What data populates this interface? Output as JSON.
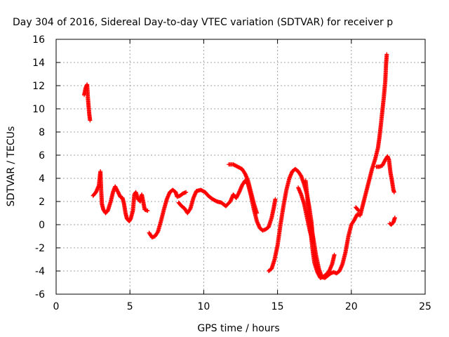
{
  "chart_data": {
    "type": "scatter",
    "title": "Day 304 of 2016, Sidereal Day-to-day VTEC variation (SDTVAR) for receiver p",
    "xlabel": "GPS time / hours",
    "ylabel": "SDTVAR / TECUs",
    "xlim": [
      0,
      25
    ],
    "ylim": [
      -6,
      16
    ],
    "xticks": [
      0,
      5,
      10,
      15,
      20,
      25
    ],
    "yticks": [
      -6,
      -4,
      -2,
      0,
      2,
      4,
      6,
      8,
      10,
      12,
      14,
      16
    ],
    "grid": true,
    "marker": "+",
    "color": "#ff0000",
    "segments": [
      [
        [
          1.9,
          11.2
        ],
        [
          2.0,
          11.8
        ],
        [
          2.1,
          12.1
        ],
        [
          2.15,
          11.0
        ],
        [
          2.2,
          10.2
        ],
        [
          2.25,
          9.5
        ],
        [
          2.3,
          9.0
        ]
      ],
      [
        [
          2.5,
          2.5
        ],
        [
          2.7,
          2.8
        ],
        [
          2.9,
          3.4
        ],
        [
          3.0,
          4.6
        ],
        [
          3.05,
          3.0
        ],
        [
          3.1,
          1.8
        ],
        [
          3.2,
          1.3
        ],
        [
          3.35,
          1.0
        ],
        [
          3.5,
          1.2
        ],
        [
          3.7,
          2.0
        ],
        [
          3.85,
          2.8
        ],
        [
          4.0,
          3.3
        ],
        [
          4.2,
          2.8
        ],
        [
          4.35,
          2.4
        ],
        [
          4.5,
          2.3
        ],
        [
          4.6,
          1.8
        ],
        [
          4.7,
          1.0
        ],
        [
          4.8,
          0.5
        ],
        [
          4.95,
          0.3
        ],
        [
          5.05,
          0.5
        ],
        [
          5.2,
          1.2
        ],
        [
          5.3,
          2.6
        ],
        [
          5.4,
          2.8
        ],
        [
          5.55,
          2.2
        ],
        [
          5.7,
          2.0
        ],
        [
          5.8,
          2.6
        ],
        [
          5.9,
          2.0
        ],
        [
          6.0,
          1.3
        ],
        [
          6.2,
          1.2
        ]
      ],
      [
        [
          6.3,
          -0.7
        ],
        [
          6.5,
          -1.1
        ],
        [
          6.7,
          -1.0
        ],
        [
          6.9,
          -0.6
        ],
        [
          7.1,
          0.3
        ],
        [
          7.3,
          1.3
        ],
        [
          7.5,
          2.2
        ],
        [
          7.7,
          2.8
        ],
        [
          7.9,
          3.0
        ],
        [
          8.1,
          2.8
        ],
        [
          8.2,
          2.4
        ],
        [
          8.4,
          2.5
        ],
        [
          8.6,
          2.7
        ],
        [
          8.8,
          2.8
        ]
      ],
      [
        [
          8.3,
          1.9
        ],
        [
          8.5,
          1.6
        ],
        [
          8.7,
          1.4
        ],
        [
          8.9,
          1.0
        ],
        [
          9.1,
          1.4
        ],
        [
          9.3,
          2.3
        ],
        [
          9.5,
          2.9
        ],
        [
          9.8,
          3.0
        ],
        [
          10.1,
          2.8
        ],
        [
          10.3,
          2.5
        ],
        [
          10.6,
          2.2
        ],
        [
          10.9,
          2.0
        ],
        [
          11.2,
          1.9
        ],
        [
          11.5,
          1.6
        ],
        [
          11.8,
          2.0
        ],
        [
          12.0,
          2.6
        ],
        [
          12.2,
          2.3
        ],
        [
          12.4,
          2.8
        ],
        [
          12.6,
          3.4
        ],
        [
          12.8,
          3.8
        ],
        [
          13.0,
          3.5
        ],
        [
          13.2,
          2.5
        ],
        [
          13.4,
          1.3
        ],
        [
          13.6,
          0.3
        ],
        [
          13.8,
          -0.3
        ],
        [
          14.0,
          -0.5
        ],
        [
          14.2,
          -0.4
        ],
        [
          14.4,
          -0.2
        ],
        [
          14.6,
          0.6
        ],
        [
          14.75,
          1.5
        ],
        [
          14.85,
          2.2
        ]
      ],
      [
        [
          11.7,
          5.2
        ],
        [
          12.0,
          5.2
        ],
        [
          12.3,
          5.0
        ],
        [
          12.6,
          4.8
        ],
        [
          12.8,
          4.4
        ],
        [
          13.0,
          3.8
        ],
        [
          13.2,
          2.8
        ],
        [
          13.4,
          1.8
        ],
        [
          13.6,
          1.0
        ]
      ],
      [
        [
          14.4,
          -4.0
        ],
        [
          14.6,
          -3.8
        ],
        [
          14.8,
          -3.0
        ],
        [
          15.0,
          -1.8
        ],
        [
          15.2,
          0.0
        ],
        [
          15.4,
          1.6
        ],
        [
          15.6,
          3.0
        ],
        [
          15.8,
          4.0
        ],
        [
          16.0,
          4.6
        ],
        [
          16.2,
          4.8
        ],
        [
          16.4,
          4.6
        ],
        [
          16.6,
          4.2
        ],
        [
          16.8,
          3.5
        ],
        [
          17.0,
          2.6
        ],
        [
          17.15,
          1.5
        ],
        [
          17.3,
          0.2
        ],
        [
          17.4,
          -1.3
        ]
      ],
      [
        [
          16.4,
          3.2
        ],
        [
          16.6,
          2.6
        ],
        [
          16.8,
          1.8
        ],
        [
          17.0,
          0.6
        ],
        [
          17.2,
          -0.6
        ],
        [
          17.4,
          -1.5
        ]
      ],
      [
        [
          16.9,
          3.8
        ],
        [
          17.0,
          2.6
        ],
        [
          17.1,
          1.3
        ],
        [
          17.2,
          0.0
        ],
        [
          17.3,
          -1.3
        ],
        [
          17.4,
          -2.4
        ],
        [
          17.5,
          -3.3
        ],
        [
          17.7,
          -4.1
        ],
        [
          17.9,
          -4.6
        ],
        [
          18.1,
          -4.5
        ],
        [
          18.3,
          -4.3
        ],
        [
          18.5,
          -4.0
        ],
        [
          18.7,
          -3.4
        ],
        [
          18.85,
          -2.6
        ]
      ],
      [
        [
          17.2,
          0.4
        ],
        [
          17.4,
          -1.0
        ],
        [
          17.6,
          -2.6
        ],
        [
          17.8,
          -3.8
        ],
        [
          18.0,
          -4.5
        ],
        [
          18.2,
          -4.6
        ],
        [
          18.4,
          -4.4
        ],
        [
          18.6,
          -4.2
        ],
        [
          18.8,
          -4.1
        ],
        [
          19.0,
          -4.2
        ],
        [
          19.2,
          -4.0
        ],
        [
          19.4,
          -3.4
        ],
        [
          19.6,
          -2.4
        ],
        [
          19.8,
          -1.0
        ],
        [
          20.0,
          0.0
        ],
        [
          20.2,
          0.4
        ],
        [
          20.4,
          0.9
        ],
        [
          20.6,
          0.8
        ],
        [
          20.8,
          1.8
        ],
        [
          21.0,
          2.8
        ],
        [
          21.2,
          3.8
        ],
        [
          21.4,
          4.8
        ],
        [
          21.6,
          5.6
        ],
        [
          21.8,
          6.6
        ],
        [
          21.9,
          7.5
        ],
        [
          22.0,
          8.6
        ],
        [
          22.1,
          9.8
        ],
        [
          22.2,
          11.0
        ],
        [
          22.3,
          12.4
        ],
        [
          22.35,
          13.8
        ],
        [
          22.4,
          14.7
        ]
      ],
      [
        [
          20.3,
          1.5
        ],
        [
          20.5,
          1.2
        ]
      ],
      [
        [
          21.7,
          5.0
        ],
        [
          21.9,
          5.0
        ],
        [
          22.1,
          5.1
        ],
        [
          22.3,
          5.6
        ],
        [
          22.45,
          5.9
        ],
        [
          22.55,
          5.6
        ],
        [
          22.65,
          4.5
        ],
        [
          22.75,
          3.8
        ],
        [
          22.85,
          3.0
        ],
        [
          22.9,
          2.8
        ]
      ],
      [
        [
          22.6,
          0.1
        ],
        [
          22.7,
          0.0
        ],
        [
          22.85,
          0.2
        ],
        [
          22.95,
          0.6
        ]
      ]
    ]
  }
}
